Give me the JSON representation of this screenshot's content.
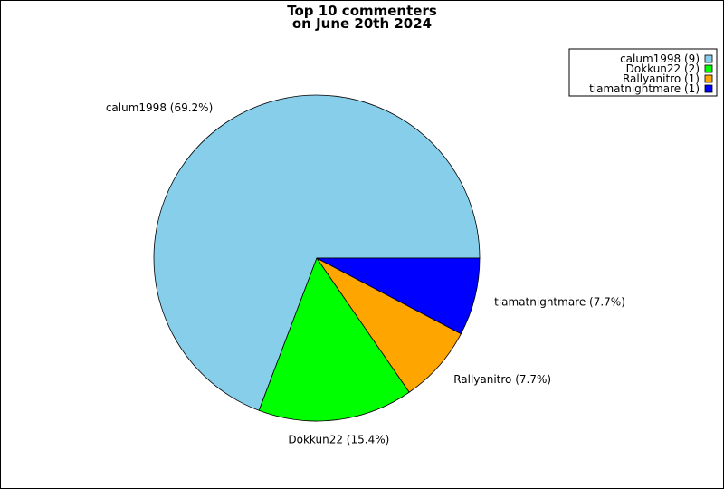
{
  "chart_data": {
    "type": "pie",
    "title": [
      "Top 10 commenters",
      "on June 20th 2024"
    ],
    "start_angle_deg": 0,
    "direction": "counterclockwise",
    "legend_position": "top-right",
    "slices": [
      {
        "name": "calum1998",
        "value": 9,
        "percent_label": "calum1998 (69.2%)",
        "legend_label": "calum1998 (9)",
        "color": "#87CEEB"
      },
      {
        "name": "Dokkun22",
        "value": 2,
        "percent_label": "Dokkun22 (15.4%)",
        "legend_label": "Dokkun22 (2)",
        "color": "#00FF00"
      },
      {
        "name": "Rallyanitro",
        "value": 1,
        "percent_label": "Rallyanitro (7.7%)",
        "legend_label": "Rallyanitro (1)",
        "color": "#FFA500"
      },
      {
        "name": "tiamatnightmare",
        "value": 1,
        "percent_label": "tiamatnightmare (7.7%)",
        "legend_label": "tiamatnightmare (1)",
        "color": "#0000FF"
      }
    ]
  }
}
